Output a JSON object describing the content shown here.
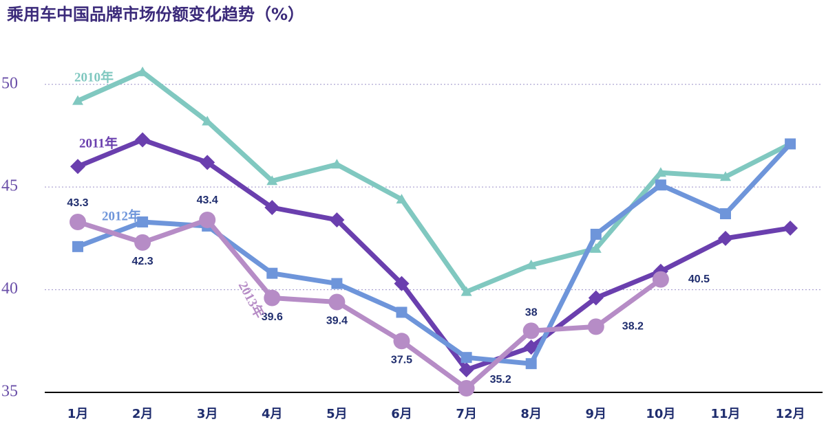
{
  "chart_data": {
    "type": "line",
    "title": "乘用车中国品牌市场份额变化趋势（%）",
    "categories": [
      "1月",
      "2月",
      "3月",
      "4月",
      "5月",
      "6月",
      "7月",
      "8月",
      "9月",
      "10月",
      "11月",
      "12月"
    ],
    "series": [
      {
        "name": "2010年",
        "color": "#80c8c0",
        "marker": "triangle",
        "values": [
          49.2,
          50.6,
          48.2,
          45.3,
          46.1,
          44.4,
          39.9,
          41.2,
          42.0,
          45.7,
          45.5,
          47.1
        ]
      },
      {
        "name": "2011年",
        "color": "#6a3fae",
        "marker": "diamond",
        "values": [
          46.0,
          47.3,
          46.2,
          44.0,
          43.4,
          40.3,
          36.1,
          37.2,
          39.6,
          40.9,
          42.5,
          43.0
        ]
      },
      {
        "name": "2012年",
        "color": "#6e95da",
        "marker": "square",
        "values": [
          42.1,
          43.3,
          43.1,
          40.8,
          40.3,
          38.9,
          36.7,
          36.4,
          42.7,
          45.1,
          43.7,
          47.1
        ]
      },
      {
        "name": "2013年",
        "color": "#b68cc6",
        "marker": "circle",
        "values": [
          43.3,
          42.3,
          43.4,
          39.6,
          39.4,
          37.5,
          35.2,
          38,
          38.2,
          40.5,
          null,
          null
        ],
        "data_labels": true
      }
    ],
    "ylim": [
      35,
      52
    ],
    "yticks": [
      35,
      40,
      45,
      50
    ],
    "grid": true
  }
}
